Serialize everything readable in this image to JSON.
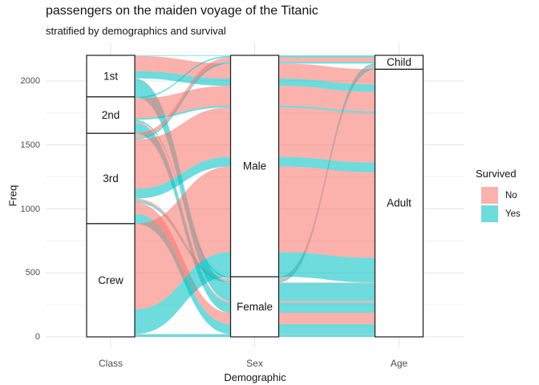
{
  "header": {
    "title": "passengers on the maiden voyage of the Titanic",
    "subtitle": "stratified by demographics and survival"
  },
  "chart_data": {
    "type": "alluvial",
    "title": "passengers on the maiden voyage of the Titanic",
    "subtitle": "stratified by demographics and survival",
    "xlabel": "Demographic",
    "ylabel": "Freq",
    "ylim": [
      0,
      2201
    ],
    "yticks": [
      0,
      500,
      1000,
      1500,
      2000
    ],
    "grid": "on",
    "legend_position": "right",
    "axes": [
      {
        "key": "class",
        "label": "Class",
        "strata": [
          "1st",
          "2nd",
          "3rd",
          "Crew"
        ]
      },
      {
        "key": "sex",
        "label": "Sex",
        "strata": [
          "Male",
          "Female"
        ]
      },
      {
        "key": "age",
        "label": "Age",
        "strata": [
          "Child",
          "Adult"
        ]
      }
    ],
    "stratum_totals": {
      "class": {
        "1st": 325,
        "2nd": 285,
        "3rd": 706,
        "Crew": 885
      },
      "sex": {
        "Male": 1731,
        "Female": 470
      },
      "age": {
        "Child": 109,
        "Adult": 2092
      }
    },
    "legend": {
      "title": "Survived",
      "entries": [
        {
          "label": "No",
          "color": "#F8766D"
        },
        {
          "label": "Yes",
          "color": "#00BFC4"
        }
      ]
    },
    "survived_order": [
      "No",
      "Yes"
    ],
    "flow_opacity": 0.57,
    "flows": [
      {
        "class": "1st",
        "sex": "Male",
        "age": "Child",
        "survived": "Yes",
        "freq": 5
      },
      {
        "class": "1st",
        "sex": "Male",
        "age": "Adult",
        "survived": "No",
        "freq": 118
      },
      {
        "class": "1st",
        "sex": "Male",
        "age": "Adult",
        "survived": "Yes",
        "freq": 57
      },
      {
        "class": "1st",
        "sex": "Female",
        "age": "Child",
        "survived": "Yes",
        "freq": 1
      },
      {
        "class": "1st",
        "sex": "Female",
        "age": "Adult",
        "survived": "No",
        "freq": 4
      },
      {
        "class": "1st",
        "sex": "Female",
        "age": "Adult",
        "survived": "Yes",
        "freq": 140
      },
      {
        "class": "2nd",
        "sex": "Male",
        "age": "Child",
        "survived": "Yes",
        "freq": 11
      },
      {
        "class": "2nd",
        "sex": "Male",
        "age": "Adult",
        "survived": "No",
        "freq": 154
      },
      {
        "class": "2nd",
        "sex": "Male",
        "age": "Adult",
        "survived": "Yes",
        "freq": 14
      },
      {
        "class": "2nd",
        "sex": "Female",
        "age": "Child",
        "survived": "Yes",
        "freq": 13
      },
      {
        "class": "2nd",
        "sex": "Female",
        "age": "Adult",
        "survived": "No",
        "freq": 13
      },
      {
        "class": "2nd",
        "sex": "Female",
        "age": "Adult",
        "survived": "Yes",
        "freq": 80
      },
      {
        "class": "3rd",
        "sex": "Male",
        "age": "Child",
        "survived": "No",
        "freq": 35
      },
      {
        "class": "3rd",
        "sex": "Male",
        "age": "Child",
        "survived": "Yes",
        "freq": 13
      },
      {
        "class": "3rd",
        "sex": "Male",
        "age": "Adult",
        "survived": "No",
        "freq": 387
      },
      {
        "class": "3rd",
        "sex": "Male",
        "age": "Adult",
        "survived": "Yes",
        "freq": 75
      },
      {
        "class": "3rd",
        "sex": "Female",
        "age": "Child",
        "survived": "No",
        "freq": 17
      },
      {
        "class": "3rd",
        "sex": "Female",
        "age": "Child",
        "survived": "Yes",
        "freq": 14
      },
      {
        "class": "3rd",
        "sex": "Female",
        "age": "Adult",
        "survived": "No",
        "freq": 89
      },
      {
        "class": "3rd",
        "sex": "Female",
        "age": "Adult",
        "survived": "Yes",
        "freq": 76
      },
      {
        "class": "Crew",
        "sex": "Male",
        "age": "Adult",
        "survived": "No",
        "freq": 670
      },
      {
        "class": "Crew",
        "sex": "Male",
        "age": "Adult",
        "survived": "Yes",
        "freq": 192
      },
      {
        "class": "Crew",
        "sex": "Female",
        "age": "Adult",
        "survived": "No",
        "freq": 3
      },
      {
        "class": "Crew",
        "sex": "Female",
        "age": "Adult",
        "survived": "Yes",
        "freq": 20
      }
    ]
  }
}
